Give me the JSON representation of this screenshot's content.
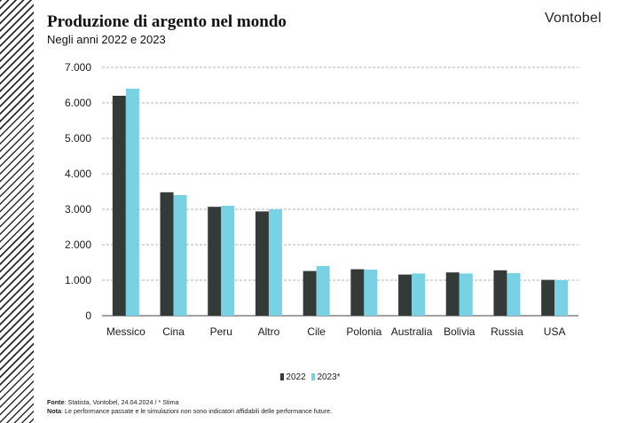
{
  "header": {
    "title": "Produzione di argento nel mondo",
    "subtitle": "Negli anni 2022 e 2023",
    "brand": "Vontobel"
  },
  "footer": {
    "source_label": "Fonte",
    "source_text": ": Statista, Vontobel, 24.04.2024 / * Stima",
    "note_label": "Nota",
    "note_text": ": Le performance passate e le simulazioni non sono indicatori affidabili delle performance future."
  },
  "colors": {
    "series_2022": "#333a37",
    "series_2023": "#78d2e3",
    "grid": "#9a9a9a"
  },
  "chart_data": {
    "type": "bar",
    "title": "Produzione di argento nel mondo",
    "subtitle": "Negli anni 2022 e 2023",
    "categories": [
      "Messico",
      "Cina",
      "Peru",
      "Altro",
      "Cile",
      "Polonia",
      "Australia",
      "Bolivia",
      "Russia",
      "USA"
    ],
    "series": [
      {
        "name": "2022",
        "values": [
          6200,
          3480,
          3070,
          2940,
          1260,
          1310,
          1160,
          1220,
          1280,
          1010
        ]
      },
      {
        "name": "2023*",
        "values": [
          6400,
          3400,
          3100,
          3000,
          1400,
          1300,
          1190,
          1190,
          1200,
          1000
        ]
      }
    ],
    "yticks": [
      "0",
      "1.000",
      "2.000",
      "3.000",
      "4.000",
      "5.000",
      "6.000",
      "7.000"
    ],
    "ylim": [
      0,
      7000
    ],
    "grid": true,
    "legend_position": "bottom-center"
  }
}
